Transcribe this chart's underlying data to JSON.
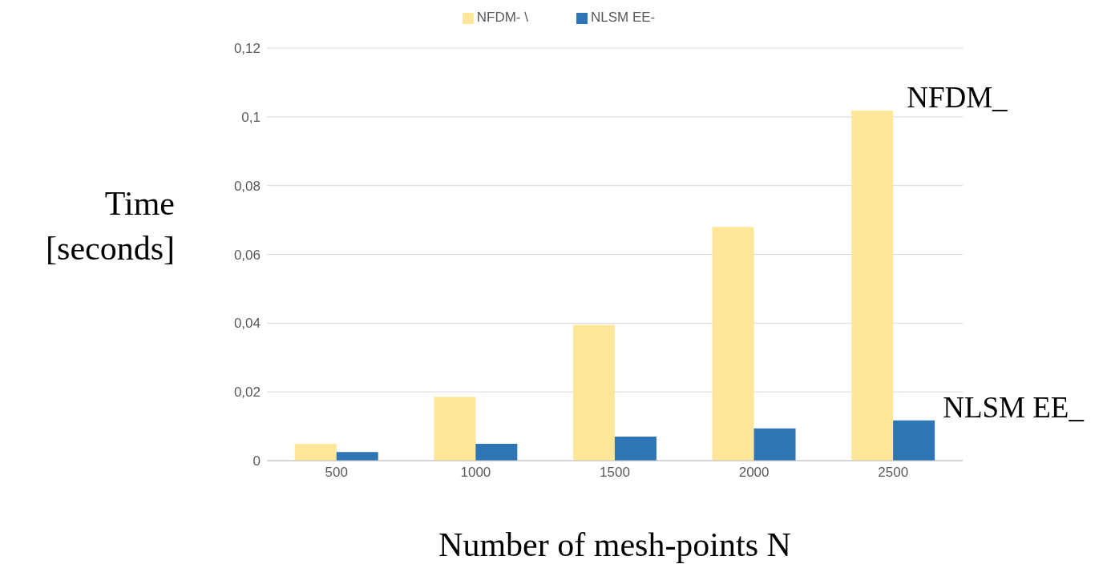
{
  "chart_data": {
    "type": "bar",
    "categories": [
      "500",
      "1000",
      "1500",
      "2000",
      "2500"
    ],
    "series": [
      {
        "name": "NFDM- \\",
        "color": "#ffe699",
        "values": [
          0.0049,
          0.0186,
          0.0395,
          0.068,
          0.1018
        ]
      },
      {
        "name": "NLSM EE-",
        "color": "#2e75b6",
        "values": [
          0.0025,
          0.0049,
          0.007,
          0.0094,
          0.0117
        ]
      }
    ],
    "xlabel": "Number of mesh-points N",
    "ylabel": "Time [seconds]",
    "ylim": [
      0,
      0.12
    ],
    "yticks": [
      0,
      {
        "value": 0.02,
        "label": "0,02"
      },
      {
        "value": 0.04,
        "label": "0,04"
      },
      {
        "value": 0.06,
        "label": "0,06"
      },
      {
        "value": 0.08,
        "label": "0,08"
      },
      {
        "value": 0.1,
        "label": "0,1"
      },
      {
        "value": 0.12,
        "label": "0,12"
      }
    ],
    "grid": "y",
    "legend": "top",
    "annotations": [
      {
        "text": "NFDM_",
        "x": "2500",
        "y": 0.1018
      },
      {
        "text": "NLSM EE_",
        "x": "2500",
        "y": 0.0117
      }
    ]
  }
}
